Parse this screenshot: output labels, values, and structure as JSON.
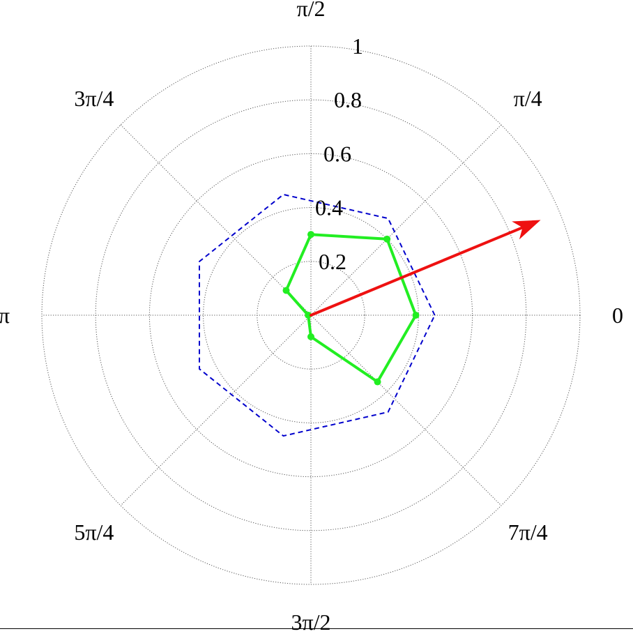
{
  "chart_data": {
    "type": "polar",
    "title": "",
    "r_range": [
      0,
      1
    ],
    "r_ticks": [
      "0.2",
      "0.4",
      "0.6",
      "0.8",
      "1"
    ],
    "r_tick_values": [
      0.2,
      0.4,
      0.6,
      0.8,
      1.0
    ],
    "theta_tick_labels": [
      "0",
      "π/4",
      "π/2",
      "3π/4",
      "π",
      "5π/4",
      "3π/2",
      "7π/4"
    ],
    "theta_tick_values_rad": [
      0,
      0.7854,
      1.5708,
      2.3562,
      3.1416,
      3.927,
      4.7124,
      5.4978
    ],
    "grid": true,
    "series": [
      {
        "style": "dashed",
        "color": "#0000cc",
        "closed": true,
        "points": [
          {
            "theta": 0.0,
            "r": 0.46
          },
          {
            "theta": 0.8976,
            "r": 0.46
          },
          {
            "theta": 1.7952,
            "r": 0.46
          },
          {
            "theta": 2.6928,
            "r": 0.46
          },
          {
            "theta": 3.5904,
            "r": 0.46
          },
          {
            "theta": 4.488,
            "r": 0.46
          },
          {
            "theta": 5.3856,
            "r": 0.46
          }
        ]
      },
      {
        "style": "solid-markers",
        "color": "#22ee22",
        "closed": true,
        "points": [
          {
            "theta": 0.0,
            "r": 0.39
          },
          {
            "theta": 0.7854,
            "r": 0.4
          },
          {
            "theta": 1.5708,
            "r": 0.3
          },
          {
            "theta": 2.3562,
            "r": 0.13
          },
          {
            "theta": 3.1416,
            "r": 0.01
          },
          {
            "theta": 4.7124,
            "r": 0.08
          },
          {
            "theta": 5.4978,
            "r": 0.35
          }
        ]
      }
    ],
    "arrow": {
      "color": "#ee1111",
      "theta": 0.3927,
      "r": 0.92
    }
  },
  "colors": {
    "grid": "#555555",
    "axis_text": "#000000"
  }
}
